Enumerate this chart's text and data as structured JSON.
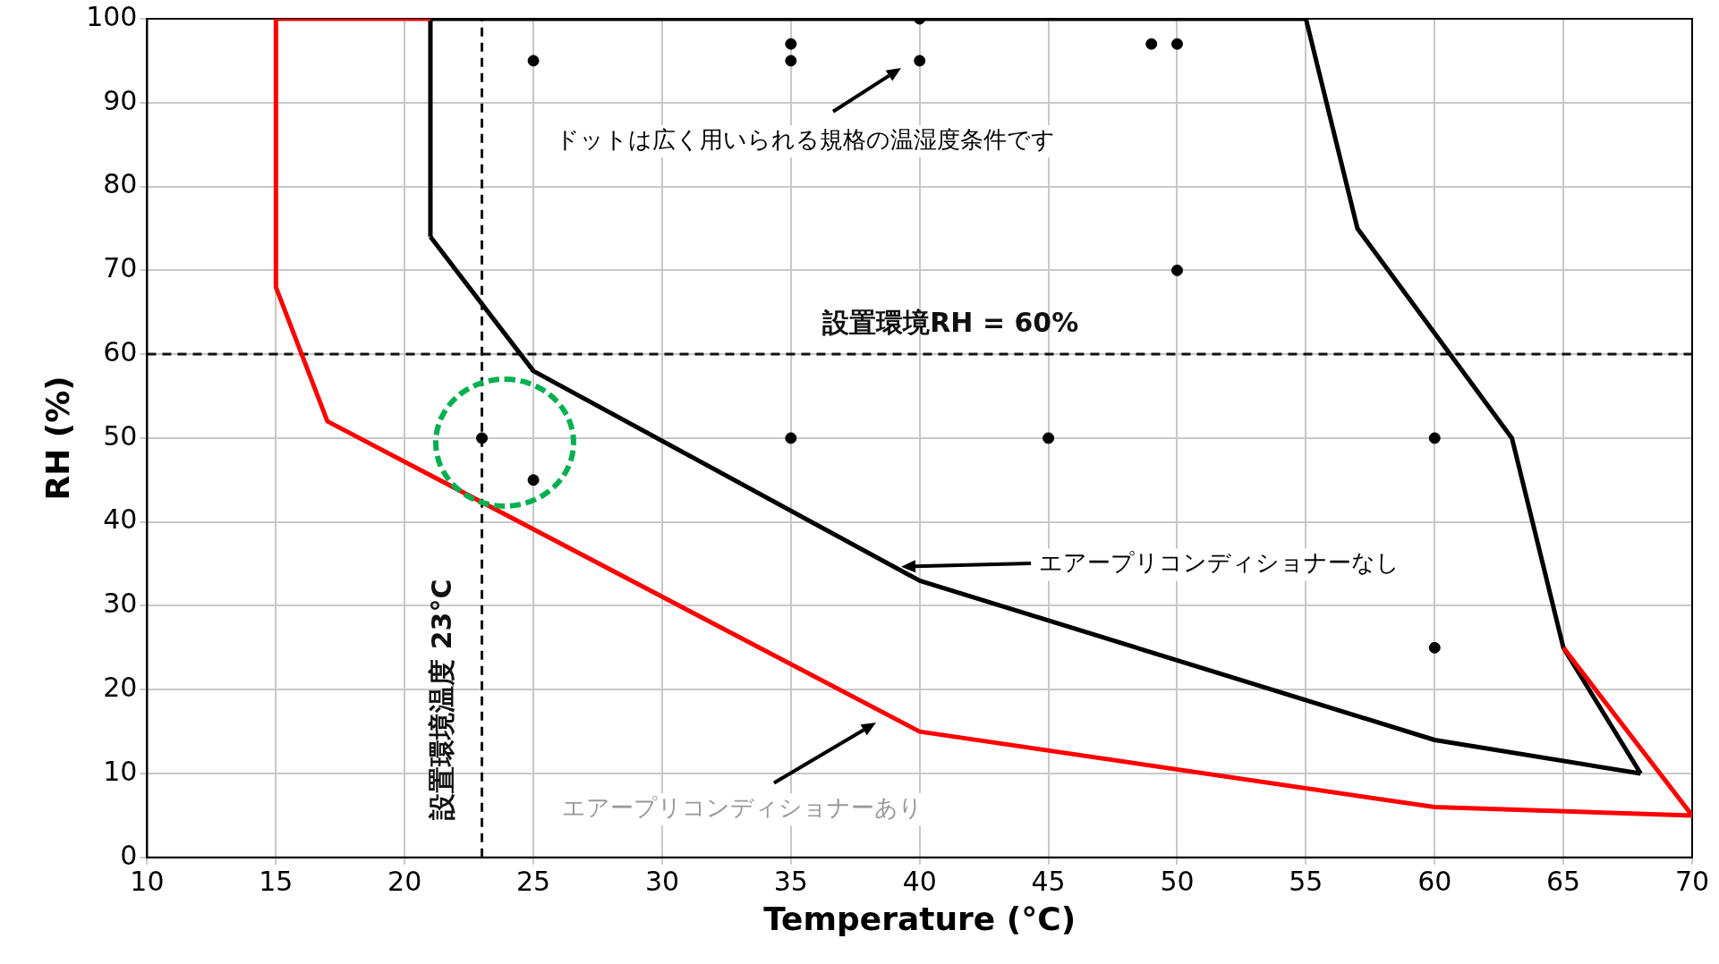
{
  "chart_data": {
    "type": "line",
    "xlabel": "Temperature (°C)",
    "ylabel": "RH (%)",
    "xlim": [
      10,
      70
    ],
    "xticks": [
      10,
      15,
      20,
      25,
      30,
      35,
      40,
      45,
      50,
      55,
      60,
      65,
      70
    ],
    "ylim": [
      0,
      100
    ],
    "yticks": [
      0,
      10,
      20,
      30,
      40,
      50,
      60,
      70,
      80,
      90,
      100
    ],
    "grid": true,
    "legend": false,
    "series": [
      {
        "color": "#ff0000",
        "x": [
          65,
          70,
          60,
          40,
          17,
          15,
          15,
          21
        ],
        "values": [
          25,
          5,
          6,
          15,
          52,
          68,
          100,
          100
        ]
      },
      {
        "color": "#000000",
        "x": [
          21,
          21,
          55,
          57,
          63,
          65,
          68
        ],
        "values": [
          74,
          100,
          100,
          75,
          50,
          25,
          10
        ]
      },
      {
        "color": "#000000",
        "x": [
          68,
          60,
          40,
          25,
          21
        ],
        "values": [
          10,
          14,
          33,
          58,
          74
        ]
      },
      {
        "type": "scatter",
        "color": "#000000",
        "marker": "circle",
        "x": [
          25,
          35,
          35,
          40,
          40,
          49,
          50,
          50,
          23,
          25,
          35,
          45,
          60,
          60
        ],
        "values": [
          95,
          97,
          95,
          100,
          95,
          97,
          97,
          70,
          50,
          45,
          50,
          50,
          50,
          25
        ]
      }
    ],
    "ref_lines": [
      {
        "axis": "x",
        "value": 23,
        "label": "設置環境温度 23°C",
        "line_style": "dashed",
        "color": "#111111"
      },
      {
        "axis": "y",
        "value": 60,
        "label": "設置環境RH = 60%",
        "line_style": "dashed",
        "color": "#111111"
      }
    ],
    "annotations": [
      "ドットは広く用いられる規格の温湿度条件です",
      "エアープリコンディショナーなし",
      "エアープリコンディショナーあり"
    ]
  }
}
